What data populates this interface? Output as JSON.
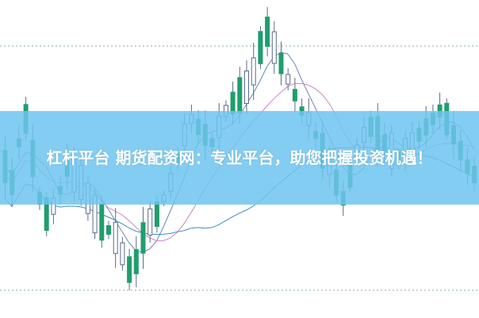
{
  "banner": {
    "title": "杠杆平台 期货配资网：专业平台，助您把握投资机遇！"
  },
  "colors": {
    "up": "#1f9e6e",
    "down": "#5a6a8a",
    "banner": "#7dcdf3",
    "ma_short": "#6f86b5",
    "ma_mid": "#c58ac9",
    "ma_long": "#3a8fb8"
  }
}
